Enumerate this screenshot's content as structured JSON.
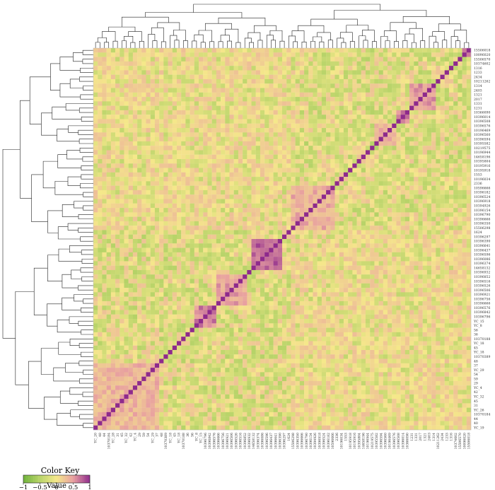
{
  "chart_data": {
    "type": "heatmap",
    "title": "",
    "correlation_range": [
      -1,
      1
    ],
    "row_labels": [
      "15506018",
      "10096020",
      "15506570",
      "10374602",
      "1316",
      "1233",
      "2434",
      "10211262",
      "1314",
      "2403",
      "1321",
      "2017",
      "1331",
      "1231",
      "10366090",
      "10396014",
      "10396508",
      "10396576",
      "10196469",
      "10396560",
      "10396594",
      "10395582",
      "10219575",
      "10196944",
      "14658196",
      "10395804",
      "10195916",
      "10195918",
      "1553",
      "10196034",
      "2336",
      "10596666",
      "10396182",
      "10396524",
      "10396918",
      "10394926",
      "10396154",
      "10396790",
      "10396666",
      "10396350",
      "15506298",
      "1624",
      "10396297",
      "10396390",
      "10396641",
      "10396437",
      "10396596",
      "10396086",
      "10396374",
      "14658132",
      "10396932",
      "10396852",
      "10396516",
      "10396526",
      "10396506",
      "10396921",
      "10396756",
      "10396666",
      "10396576",
      "10396842",
      "10396796",
      "YC_15",
      "YC_8",
      "56",
      "36",
      "10370188",
      "YC_18",
      "45",
      "YC_18",
      "10370389",
      "48",
      "37",
      "YC_29",
      "54",
      "59",
      "29",
      "YC_4",
      "42",
      "YC_32",
      "45",
      "31",
      "YC_26",
      "10370184",
      "44",
      "40",
      "YC_19"
    ],
    "col_labels": [
      "YC_20",
      "48",
      "44",
      "10370184",
      "YC_28",
      "31",
      "45",
      "YC_32",
      "42",
      "YC_4",
      "29",
      "59",
      "54",
      "YC_29",
      "37",
      "48",
      "10370389",
      "YC_18",
      "45",
      "YC_18",
      "10370188",
      "36",
      "56",
      "YC_8",
      "YC_15",
      "10396796",
      "10396842",
      "10396576",
      "10396666",
      "10396756",
      "10396921",
      "10396506",
      "10396526",
      "10396516",
      "10396852",
      "10396932",
      "14658132",
      "10396374",
      "10396086",
      "10396596",
      "10396437",
      "10396641",
      "10396390",
      "10396297",
      "1624",
      "15506298",
      "10396350",
      "10396666",
      "10396790",
      "10396154",
      "10394926",
      "10396918",
      "10396524",
      "10396182",
      "10596666",
      "2336",
      "10196034",
      "1553",
      "10195918",
      "10195916",
      "10395804",
      "14658196",
      "10196944",
      "10219575",
      "10395582",
      "10396594",
      "10396560",
      "10196469",
      "10396576",
      "10396508",
      "10396014",
      "10366090",
      "1231",
      "1331",
      "2017",
      "1321",
      "2403",
      "1314",
      "10211262",
      "2434",
      "1233",
      "1316",
      "10374602",
      "15506570",
      "10096020",
      "15506018"
    ],
    "diagonal_value": 1,
    "row_order": "top-to-bottom",
    "col_order": "left-to-right",
    "dendrograms": {
      "top": true,
      "left": true
    },
    "blocks": [
      {
        "rows": [
          0,
          1
        ],
        "mean": 0.55
      },
      {
        "rows": [
          8,
          13
        ],
        "mean": 0.55
      },
      {
        "rows": [
          14,
          16
        ],
        "mean": 0.6
      },
      {
        "rows": [
          17,
          21
        ],
        "mean": 0.35
      },
      {
        "rows": [
          31,
          40
        ],
        "mean": 0.4
      },
      {
        "rows": [
          43,
          49
        ],
        "mean": 0.75
      },
      {
        "rows": [
          51,
          57
        ],
        "mean": 0.45
      },
      {
        "rows": [
          58,
          62
        ],
        "mean": 0.6
      },
      {
        "rows": [
          71,
          85
        ],
        "mean": 0.35
      }
    ],
    "color_scale": [
      {
        "value": -1,
        "color": "#6fb33a"
      },
      {
        "value": -0.5,
        "color": "#b9d46a"
      },
      {
        "value": 0,
        "color": "#f5e88a"
      },
      {
        "value": 0.5,
        "color": "#e8a0a0"
      },
      {
        "value": 1,
        "color": "#8e2a8c"
      }
    ]
  },
  "color_key": {
    "title": "Color Key",
    "xlabel": "Value",
    "ticks": [
      "−1",
      "−0.5",
      "0",
      "0.5",
      "1"
    ]
  }
}
